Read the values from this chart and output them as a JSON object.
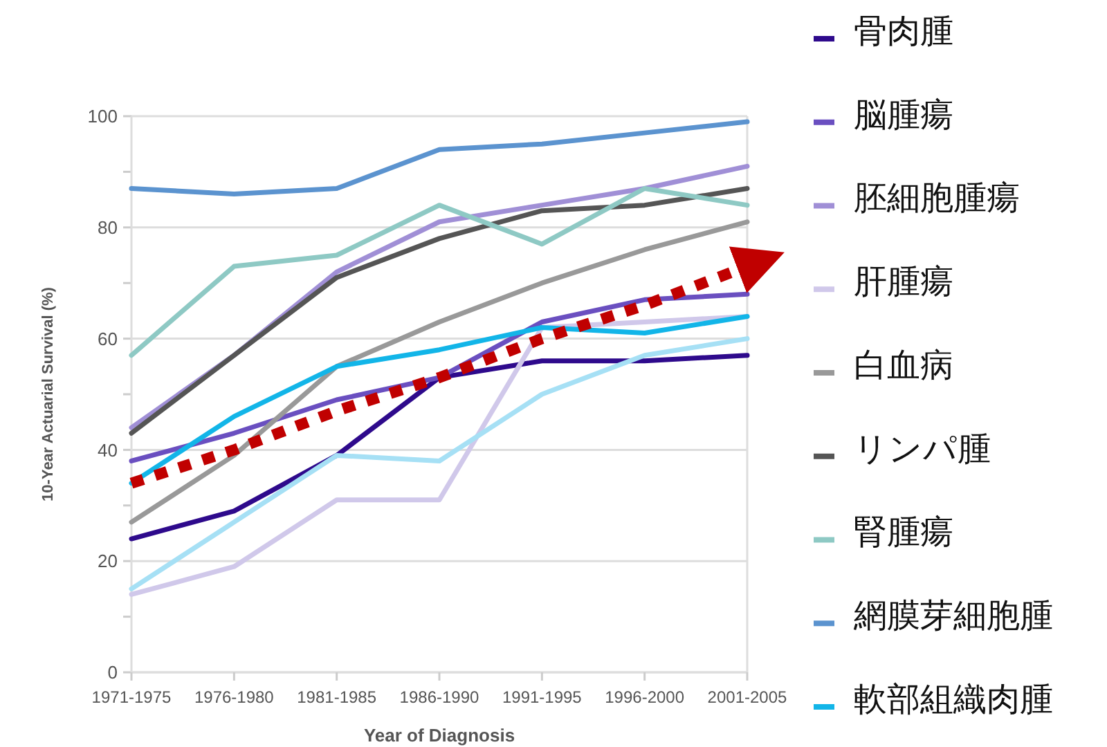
{
  "chart_data": {
    "type": "line",
    "xlabel": "Year of Diagnosis",
    "ylabel": "10-Year Actuarial Survival (%)",
    "categories": [
      "1971-1975",
      "1976-1980",
      "1981-1985",
      "1986-1990",
      "1991-1995",
      "1996-2000",
      "2001-2005"
    ],
    "ylim": [
      0,
      100
    ],
    "yticks": [
      0,
      {
        "value": 10,
        "label": null
      },
      20,
      {
        "value": 30,
        "label": null
      },
      40,
      {
        "value": 50,
        "label": null
      },
      60,
      {
        "value": 70,
        "label": null
      },
      80,
      {
        "value": 90,
        "label": null
      },
      100
    ],
    "grid": "y",
    "legend": "right",
    "marker": "none",
    "line_style": "solid",
    "series": [
      {
        "name": "骨肉腫",
        "color": "#2e0a8c",
        "values": [
          24,
          29,
          39,
          53,
          56,
          56,
          57
        ]
      },
      {
        "name": "脳腫瘍",
        "color": "#6a4fc0",
        "values": [
          38,
          43,
          49,
          53,
          63,
          67,
          68
        ]
      },
      {
        "name": "胚細胞腫瘍",
        "color": "#a08fd6",
        "values": [
          44,
          57,
          72,
          81,
          84,
          87,
          91
        ]
      },
      {
        "name": "肝腫瘍",
        "color": "#d0c8ea",
        "values": [
          14,
          19,
          31,
          31,
          62,
          63,
          64
        ]
      },
      {
        "name": "白血病",
        "color": "#999999",
        "values": [
          27,
          39,
          55,
          63,
          70,
          76,
          81
        ]
      },
      {
        "name": "リンパ腫",
        "color": "#555555",
        "values": [
          43,
          57,
          71,
          78,
          83,
          84,
          87
        ]
      },
      {
        "name": "腎腫瘍",
        "color": "#8ec9c4",
        "values": [
          57,
          73,
          75,
          84,
          77,
          87,
          84
        ]
      },
      {
        "name": "網膜芽細胞腫",
        "color": "#5b93cf",
        "values": [
          87,
          86,
          87,
          94,
          95,
          97,
          99
        ]
      },
      {
        "name": "軟部組織肉腫",
        "color": "#12b5e8",
        "values": [
          34,
          46,
          55,
          58,
          62,
          61,
          64
        ]
      },
      {
        "color": "#a6e0f5",
        "values": [
          15,
          27,
          39,
          38,
          50,
          57,
          60
        ]
      },
      {
        "color": "#c00000",
        "line_style": "dotted",
        "values": [
          34,
          40,
          47,
          53,
          60,
          66,
          73
        ]
      }
    ]
  }
}
